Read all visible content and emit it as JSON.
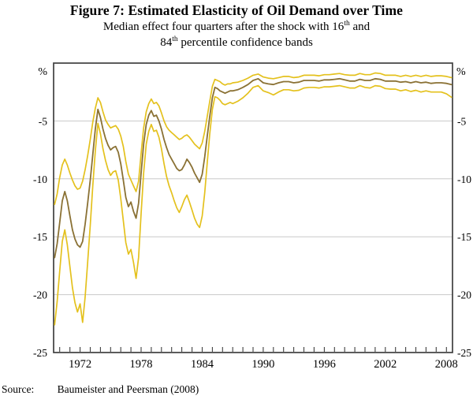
{
  "title": "Figure 7: Estimated Elasticity of Oil Demand over Time",
  "subtitle": {
    "line1_pre": "Median effect four quarters after the shock with 16",
    "sup1": "th",
    "line1_post": " and",
    "line2_pre": "84",
    "sup2": "th",
    "line2_post": " percentile confidence bands"
  },
  "source": {
    "label": "Source:",
    "text": "Baumeister and Peersman (2008)"
  },
  "chart_data": {
    "type": "line",
    "title": "Figure 7: Estimated Elasticity of Oil Demand over Time",
    "subtitle": "Median effect four quarters after the shock with 16th and 84th percentile confidence bands",
    "xlabel": "",
    "ylabel": "%",
    "legend": "none",
    "grid": "horizontal",
    "style": {
      "axis_color": "#3f3f3f",
      "grid_color": "#c9c9c9",
      "band_color": "#e4c11d",
      "median_color": "#8a7134",
      "text_color": "#000000"
    },
    "y_axis": {
      "unit_label": "%",
      "range": [
        -25,
        0
      ],
      "ticks": [
        -5,
        -10,
        -15,
        -20,
        -25
      ],
      "labels_both_sides": true
    },
    "x_axis": {
      "range": [
        1969.4,
        2008.6
      ],
      "tick_start": 1970,
      "tick_end": 2008,
      "tick_step_years": 1,
      "label_years": [
        1972,
        1978,
        1984,
        1990,
        1996,
        2002,
        2008
      ]
    },
    "columns": [
      "year",
      "p84_band",
      "median",
      "p16_band"
    ],
    "series": [
      {
        "column": "p84_band",
        "name": "84th percentile band",
        "color": "#e4c11d",
        "width": 1.7,
        "data_name": "band-84th-percentile-line"
      },
      {
        "column": "p16_band",
        "name": "16th percentile band",
        "color": "#e4c11d",
        "width": 1.7,
        "data_name": "band-16th-percentile-line"
      },
      {
        "column": "median",
        "name": "Median effect",
        "color": "#8a7134",
        "width": 1.8,
        "data_name": "median-effect-line"
      }
    ],
    "rows": [
      [
        1969.5,
        -12.2,
        -16.8,
        -22.6
      ],
      [
        1969.75,
        -11.3,
        -15.6,
        -20.6
      ],
      [
        1970,
        -9.9,
        -13.8,
        -18
      ],
      [
        1970.25,
        -8.8,
        -11.9,
        -15.4
      ],
      [
        1970.5,
        -8.3,
        -11.1,
        -14.4
      ],
      [
        1970.75,
        -8.8,
        -11.9,
        -15.7
      ],
      [
        1971,
        -9.5,
        -13.2,
        -17.6
      ],
      [
        1971.25,
        -10.1,
        -14.4,
        -19.4
      ],
      [
        1971.5,
        -10.6,
        -15.2,
        -20.7
      ],
      [
        1971.75,
        -10.9,
        -15.7,
        -21.5
      ],
      [
        1972,
        -10.8,
        -15.9,
        -20.8
      ],
      [
        1972.25,
        -10.2,
        -15.4,
        -22.4
      ],
      [
        1972.5,
        -9.2,
        -13.9,
        -20.2
      ],
      [
        1972.75,
        -8,
        -12.1,
        -17.2
      ],
      [
        1973,
        -6.6,
        -10.1,
        -14
      ],
      [
        1973.25,
        -5.1,
        -7.9,
        -10.6
      ],
      [
        1973.5,
        -3.9,
        -5.7,
        -7.6
      ],
      [
        1973.75,
        -3,
        -4,
        -5.2
      ],
      [
        1974,
        -3.4,
        -4.7,
        -6.1
      ],
      [
        1974.25,
        -4.2,
        -5.7,
        -7.4
      ],
      [
        1974.5,
        -4.9,
        -6.5,
        -8.4
      ],
      [
        1974.75,
        -5.3,
        -7.1,
        -9.2
      ],
      [
        1975,
        -5.6,
        -7.5,
        -9.7
      ],
      [
        1975.25,
        -5.5,
        -7.3,
        -9.4
      ],
      [
        1975.5,
        -5.4,
        -7.2,
        -9.3
      ],
      [
        1975.75,
        -5.7,
        -7.7,
        -10.1
      ],
      [
        1976,
        -6.3,
        -8.7,
        -11.7
      ],
      [
        1976.25,
        -7.2,
        -10.1,
        -13.6
      ],
      [
        1976.5,
        -8.5,
        -11.6,
        -15.5
      ],
      [
        1976.75,
        -9.6,
        -12.4,
        -16.5
      ],
      [
        1977,
        -10.1,
        -12,
        -16.1
      ],
      [
        1977.25,
        -10.6,
        -12.8,
        -17.2
      ],
      [
        1977.5,
        -11.1,
        -13.4,
        -18.6
      ],
      [
        1977.75,
        -10.2,
        -12.1,
        -16.8
      ],
      [
        1978,
        -7.8,
        -9.5,
        -13
      ],
      [
        1978.25,
        -5.6,
        -7,
        -9.5
      ],
      [
        1978.5,
        -4.2,
        -5.3,
        -7
      ],
      [
        1978.75,
        -3.5,
        -4.5,
        -5.9
      ],
      [
        1979,
        -3.1,
        -4.1,
        -5.3
      ],
      [
        1979.25,
        -3.5,
        -4.6,
        -5.9
      ],
      [
        1979.5,
        -3.4,
        -4.5,
        -5.8
      ],
      [
        1979.75,
        -3.7,
        -5,
        -6.4
      ],
      [
        1980,
        -4.3,
        -5.7,
        -7.4
      ],
      [
        1980.25,
        -5,
        -6.6,
        -8.7
      ],
      [
        1980.5,
        -5.5,
        -7.3,
        -9.8
      ],
      [
        1980.75,
        -5.8,
        -7.9,
        -10.6
      ],
      [
        1981,
        -6,
        -8.3,
        -11.2
      ],
      [
        1981.25,
        -6.2,
        -8.7,
        -11.9
      ],
      [
        1981.5,
        -6.4,
        -9.1,
        -12.5
      ],
      [
        1981.75,
        -6.6,
        -9.3,
        -12.9
      ],
      [
        1982,
        -6.5,
        -9.2,
        -12.4
      ],
      [
        1982.25,
        -6.3,
        -8.8,
        -11.8
      ],
      [
        1982.5,
        -6.2,
        -8.3,
        -11.4
      ],
      [
        1982.75,
        -6.4,
        -8.6,
        -12
      ],
      [
        1983,
        -6.7,
        -9,
        -12.7
      ],
      [
        1983.25,
        -7,
        -9.5,
        -13.4
      ],
      [
        1983.5,
        -7.2,
        -9.9,
        -13.9
      ],
      [
        1983.75,
        -7.4,
        -10.3,
        -14.2
      ],
      [
        1984,
        -6.9,
        -9.6,
        -13.2
      ],
      [
        1984.25,
        -5.9,
        -8.1,
        -11.2
      ],
      [
        1984.5,
        -4.6,
        -6.3,
        -8.6
      ],
      [
        1984.75,
        -3.3,
        -4.6,
        -6.1
      ],
      [
        1985,
        -2,
        -3,
        -4
      ],
      [
        1985.25,
        -1.4,
        -2.1,
        -2.9
      ],
      [
        1985.5,
        -1.5,
        -2.2,
        -3
      ],
      [
        1985.75,
        -1.6,
        -2.4,
        -3.2
      ],
      [
        1986,
        -1.8,
        -2.5,
        -3.5
      ],
      [
        1986.25,
        -1.9,
        -2.6,
        -3.6
      ],
      [
        1986.5,
        -1.8,
        -2.5,
        -3.5
      ],
      [
        1986.75,
        -1.8,
        -2.4,
        -3.4
      ],
      [
        1987,
        -1.7,
        -2.4,
        -3.5
      ],
      [
        1987.5,
        -1.65,
        -2.3,
        -3.3
      ],
      [
        1988,
        -1.5,
        -2.1,
        -3
      ],
      [
        1988.5,
        -1.3,
        -1.85,
        -2.6
      ],
      [
        1989,
        -1.05,
        -1.5,
        -2.1
      ],
      [
        1989.5,
        -0.95,
        -1.35,
        -1.95
      ],
      [
        1990,
        -1.2,
        -1.7,
        -2.4
      ],
      [
        1990.5,
        -1.3,
        -1.8,
        -2.55
      ],
      [
        1991,
        -1.35,
        -1.85,
        -2.75
      ],
      [
        1991.5,
        -1.25,
        -1.7,
        -2.5
      ],
      [
        1992,
        -1.15,
        -1.6,
        -2.3
      ],
      [
        1992.5,
        -1.15,
        -1.6,
        -2.3
      ],
      [
        1993,
        -1.25,
        -1.7,
        -2.4
      ],
      [
        1993.5,
        -1.2,
        -1.65,
        -2.35
      ],
      [
        1994,
        -1.05,
        -1.5,
        -2.15
      ],
      [
        1994.5,
        -1.05,
        -1.5,
        -2.1
      ],
      [
        1995,
        -1.05,
        -1.5,
        -2.1
      ],
      [
        1995.5,
        -1.1,
        -1.55,
        -2.15
      ],
      [
        1996,
        -1,
        -1.45,
        -2.05
      ],
      [
        1996.5,
        -1,
        -1.45,
        -2.05
      ],
      [
        1997,
        -0.95,
        -1.4,
        -2
      ],
      [
        1997.5,
        -0.9,
        -1.35,
        -1.95
      ],
      [
        1998,
        -1,
        -1.45,
        -2.05
      ],
      [
        1998.5,
        -1.05,
        -1.55,
        -2.15
      ],
      [
        1999,
        -1.05,
        -1.55,
        -2.15
      ],
      [
        1999.5,
        -0.9,
        -1.4,
        -1.95
      ],
      [
        2000,
        -1,
        -1.5,
        -2.1
      ],
      [
        2000.5,
        -1,
        -1.5,
        -2.15
      ],
      [
        2001,
        -0.85,
        -1.35,
        -1.95
      ],
      [
        2001.5,
        -0.9,
        -1.4,
        -2
      ],
      [
        2002,
        -1.05,
        -1.55,
        -2.2
      ],
      [
        2002.5,
        -1.05,
        -1.55,
        -2.25
      ],
      [
        2003,
        -1.05,
        -1.55,
        -2.25
      ],
      [
        2003.5,
        -1.15,
        -1.65,
        -2.4
      ],
      [
        2004,
        -1.05,
        -1.6,
        -2.3
      ],
      [
        2004.5,
        -1.15,
        -1.7,
        -2.45
      ],
      [
        2005,
        -1.05,
        -1.6,
        -2.35
      ],
      [
        2005.5,
        -1.15,
        -1.7,
        -2.5
      ],
      [
        2006,
        -1.05,
        -1.65,
        -2.4
      ],
      [
        2006.5,
        -1.15,
        -1.75,
        -2.5
      ],
      [
        2007,
        -1.1,
        -1.7,
        -2.5
      ],
      [
        2007.5,
        -1.1,
        -1.7,
        -2.5
      ],
      [
        2008,
        -1.15,
        -1.75,
        -2.65
      ],
      [
        2008.5,
        -1.25,
        -1.85,
        -2.95
      ]
    ]
  }
}
